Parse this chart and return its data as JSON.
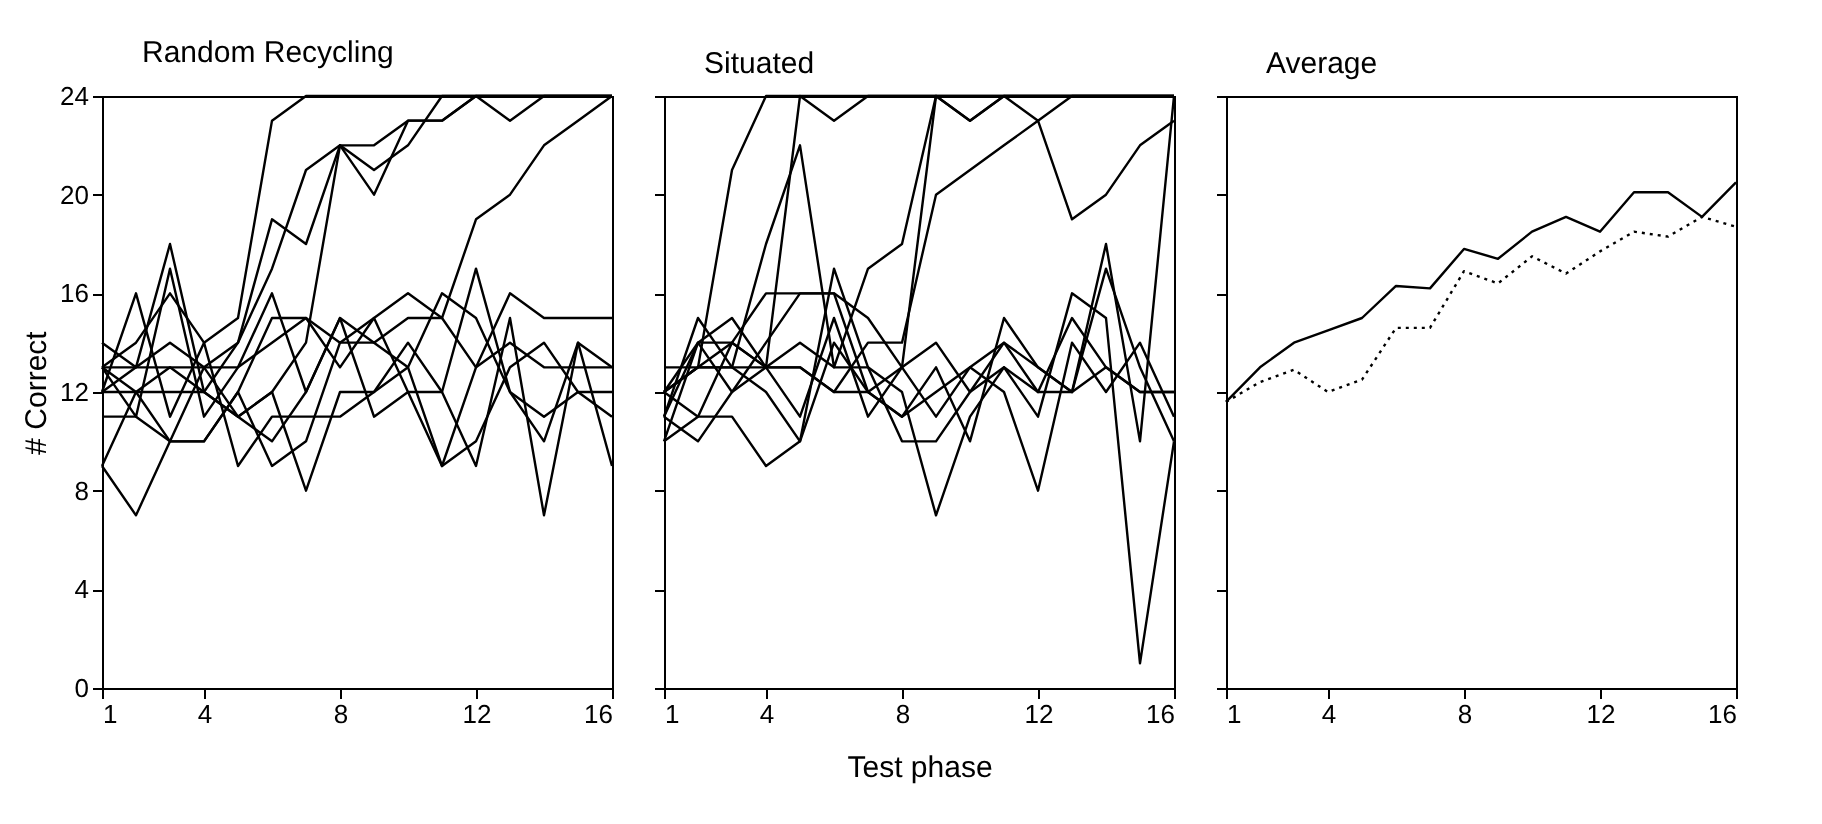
{
  "chart_data": [
    {
      "type": "line",
      "title": "Random Recycling",
      "ylabel": "# Correct",
      "x": [
        1,
        2,
        3,
        4,
        5,
        6,
        7,
        8,
        9,
        10,
        11,
        12,
        13,
        14,
        15,
        16
      ],
      "xlim": [
        1,
        16
      ],
      "xticks": [
        1,
        4,
        8,
        12,
        16
      ],
      "ylim": [
        0,
        24
      ],
      "yticks": [
        0,
        4,
        8,
        12,
        16,
        20,
        24
      ],
      "series": [
        {
          "color": "#000000",
          "values": [
            13,
            14,
            16,
            14,
            15,
            23,
            24,
            24,
            24,
            24,
            24,
            24,
            24,
            24,
            24,
            24
          ]
        },
        {
          "color": "#000000",
          "values": [
            12,
            13,
            14,
            13,
            14,
            19,
            18,
            22,
            22,
            23,
            23,
            24,
            24,
            24,
            24,
            24
          ]
        },
        {
          "color": "#000000",
          "values": [
            13,
            12,
            13,
            12,
            14,
            17,
            21,
            22,
            20,
            23,
            23,
            24,
            23,
            24,
            24,
            24
          ]
        },
        {
          "color": "#000000",
          "values": [
            11,
            11,
            10,
            10,
            12,
            15,
            15,
            14,
            15,
            16,
            15,
            19,
            20,
            22,
            23,
            24
          ]
        },
        {
          "color": "#000000",
          "values": [
            12,
            12,
            12,
            12,
            11,
            12,
            14,
            22,
            21,
            22,
            24,
            24,
            24,
            24,
            24,
            24
          ]
        },
        {
          "color": "#000000",
          "values": [
            9,
            7,
            10,
            13,
            11,
            12,
            8,
            12,
            12,
            13,
            16,
            15,
            12,
            11,
            12,
            11
          ]
        },
        {
          "color": "#000000",
          "values": [
            14,
            13,
            18,
            12,
            11,
            10,
            12,
            15,
            14,
            13,
            9,
            13,
            16,
            15,
            15,
            15
          ]
        },
        {
          "color": "#000000",
          "values": [
            12,
            16,
            11,
            14,
            9,
            11,
            11,
            11,
            12,
            14,
            12,
            9,
            15,
            7,
            14,
            13
          ]
        },
        {
          "color": "#000000",
          "values": [
            13,
            11,
            17,
            11,
            13,
            14,
            15,
            13,
            15,
            12,
            12,
            17,
            12,
            10,
            14,
            9
          ]
        },
        {
          "color": "#000000",
          "values": [
            9,
            12,
            10,
            10,
            12,
            9,
            10,
            14,
            14,
            15,
            15,
            13,
            14,
            13,
            13,
            13
          ]
        },
        {
          "color": "#000000",
          "values": [
            13,
            13,
            13,
            13,
            13,
            16,
            12,
            15,
            11,
            12,
            9,
            10,
            13,
            14,
            12,
            12
          ]
        }
      ]
    },
    {
      "type": "line",
      "title": "Situated",
      "xlabel": "Test phase",
      "tick_labels": "x",
      "x": [
        1,
        2,
        3,
        4,
        5,
        6,
        7,
        8,
        9,
        10,
        11,
        12,
        13,
        14,
        15,
        16
      ],
      "xlim": [
        1,
        16
      ],
      "xticks": [
        1,
        4,
        8,
        12,
        16
      ],
      "ylim": [
        0,
        24
      ],
      "yticks": [
        0,
        4,
        8,
        12,
        16,
        20,
        24
      ],
      "series": [
        {
          "color": "#000000",
          "values": [
            12,
            13,
            21,
            24,
            24,
            24,
            24,
            24,
            24,
            24,
            24,
            24,
            24,
            24,
            24,
            24
          ]
        },
        {
          "color": "#000000",
          "values": [
            10,
            14,
            15,
            13,
            24,
            23,
            24,
            24,
            24,
            24,
            24,
            24,
            24,
            24,
            24,
            24
          ]
        },
        {
          "color": "#000000",
          "values": [
            12,
            13,
            13,
            18,
            22,
            13,
            17,
            18,
            24,
            23,
            24,
            24,
            24,
            24,
            24,
            24
          ]
        },
        {
          "color": "#000000",
          "values": [
            11,
            10,
            12,
            14,
            16,
            16,
            12,
            13,
            24,
            23,
            24,
            23,
            24,
            24,
            24,
            24
          ]
        },
        {
          "color": "#000000",
          "values": [
            10,
            11,
            14,
            13,
            13,
            12,
            14,
            14,
            20,
            21,
            22,
            23,
            19,
            20,
            22,
            23
          ]
        },
        {
          "color": "#000000",
          "values": [
            12,
            13,
            14,
            16,
            16,
            16,
            15,
            13,
            14,
            12,
            14,
            13,
            12,
            17,
            13,
            10
          ]
        },
        {
          "color": "#000000",
          "values": [
            11,
            15,
            13,
            12,
            10,
            14,
            12,
            11,
            13,
            10,
            15,
            13,
            12,
            18,
            10,
            24
          ]
        },
        {
          "color": "#000000",
          "values": [
            12,
            11,
            11,
            9,
            10,
            17,
            13,
            10,
            10,
            12,
            13,
            11,
            16,
            15,
            1,
            10
          ]
        },
        {
          "color": "#000000",
          "values": [
            13,
            13,
            13,
            13,
            13,
            12,
            12,
            11,
            12,
            13,
            14,
            12,
            12,
            13,
            12,
            12
          ]
        },
        {
          "color": "#000000",
          "values": [
            11,
            14,
            12,
            13,
            11,
            15,
            11,
            13,
            11,
            13,
            12,
            8,
            14,
            12,
            14,
            11
          ]
        },
        {
          "color": "#000000",
          "values": [
            12,
            14,
            14,
            13,
            14,
            13,
            13,
            12,
            7,
            11,
            13,
            12,
            15,
            13,
            12,
            12
          ]
        }
      ]
    },
    {
      "type": "line",
      "title": "Average",
      "tick_labels": "x",
      "x": [
        1,
        2,
        3,
        4,
        5,
        6,
        7,
        8,
        9,
        10,
        11,
        12,
        13,
        14,
        15,
        16
      ],
      "xlim": [
        1,
        16
      ],
      "xticks": [
        1,
        4,
        8,
        12,
        16
      ],
      "ylim": [
        0,
        24
      ],
      "yticks": [
        0,
        4,
        8,
        12,
        16,
        20,
        24
      ],
      "series": [
        {
          "color": "#000000",
          "line_style": "solid",
          "values": [
            11.6,
            13.0,
            14.0,
            14.5,
            15.0,
            16.3,
            16.2,
            17.8,
            17.4,
            18.5,
            19.1,
            18.5,
            20.1,
            20.1,
            19.1,
            20.5
          ]
        },
        {
          "color": "#000000",
          "line_style": "dotted",
          "values": [
            11.6,
            12.4,
            12.9,
            12.0,
            12.5,
            14.6,
            14.6,
            16.9,
            16.4,
            17.5,
            16.8,
            17.7,
            18.5,
            18.3,
            19.1,
            18.7
          ]
        }
      ]
    }
  ]
}
